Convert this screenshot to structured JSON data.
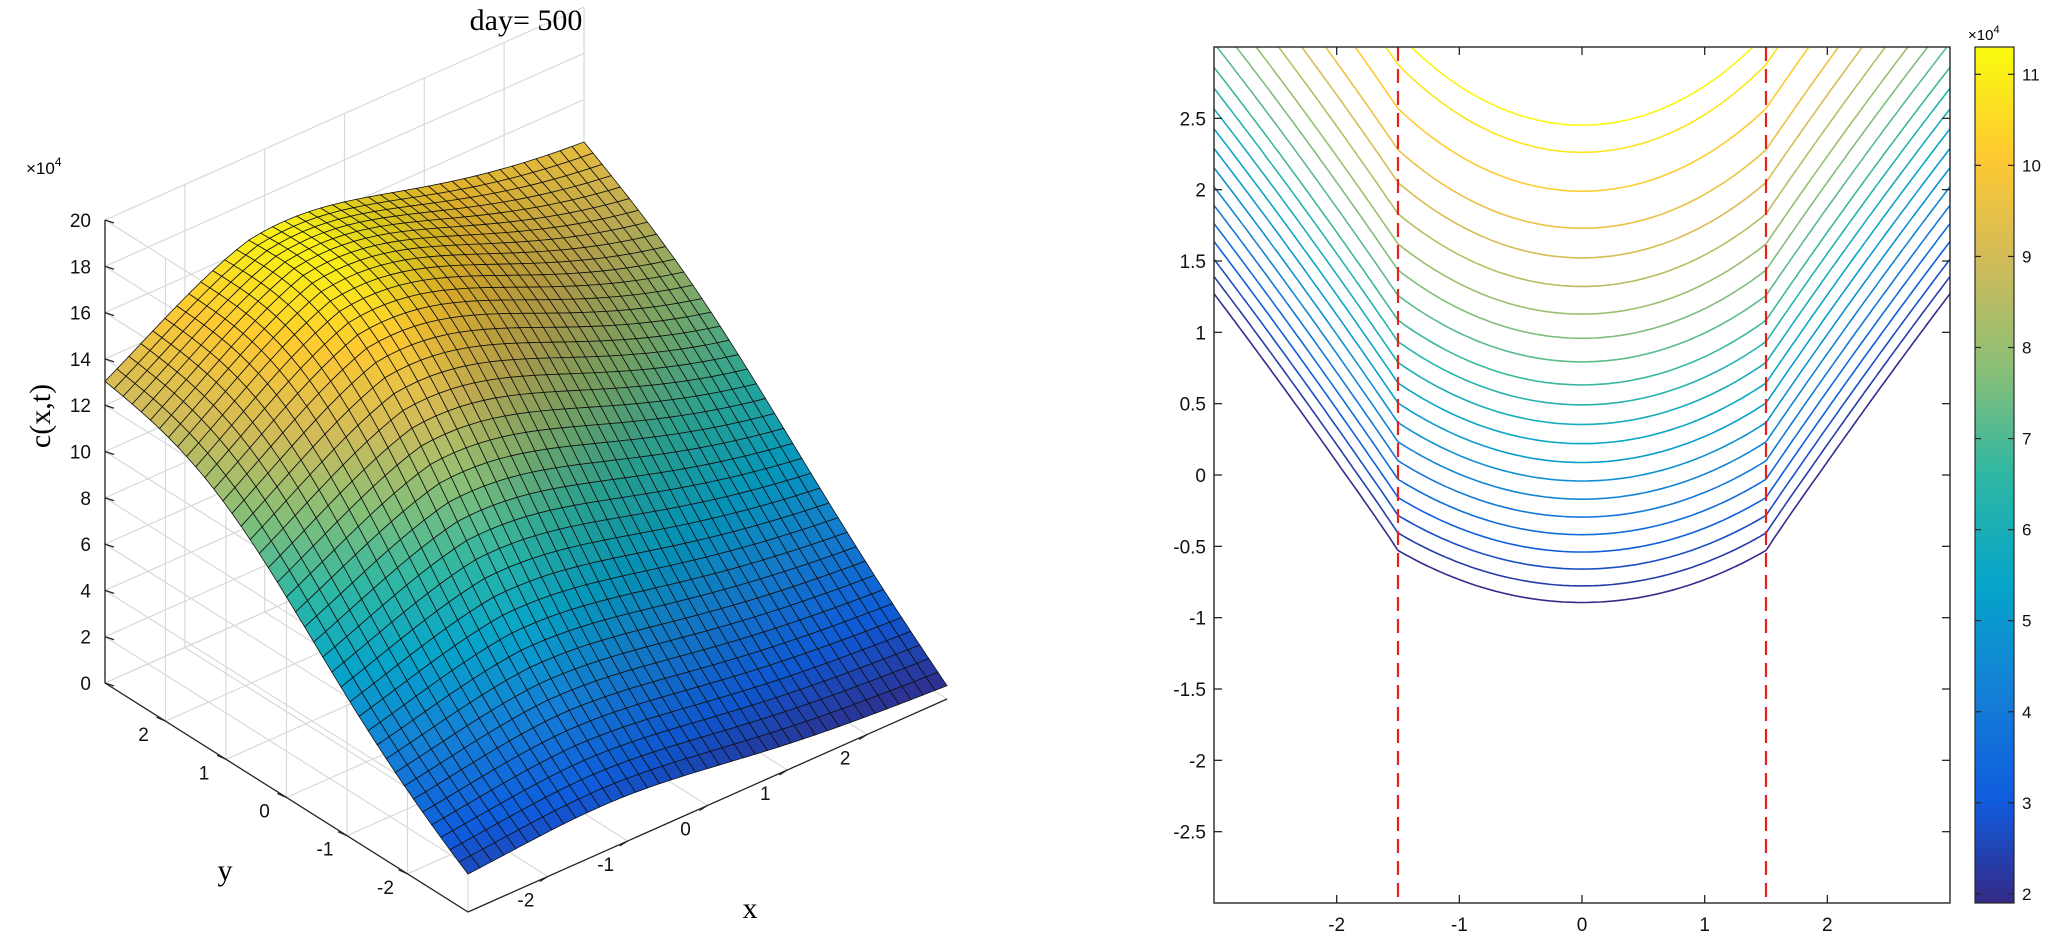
{
  "chart_data": [
    {
      "type": "surface",
      "title": "day= 500",
      "xlabel": "x",
      "ylabel": "y",
      "zlabel": "c(x,t)",
      "z_multiplier": "×10",
      "z_exponent": "4",
      "x_ticks": [
        "-2",
        "-1",
        "0",
        "1",
        "2"
      ],
      "y_ticks": [
        "-2",
        "-1",
        "0",
        "1",
        "2"
      ],
      "z_ticks": [
        "0",
        "2",
        "4",
        "6",
        "8",
        "10",
        "12",
        "14",
        "16",
        "18",
        "20"
      ],
      "xlim": [
        -3,
        3
      ],
      "ylim": [
        -3,
        3
      ],
      "zlim": [
        0,
        20
      ],
      "grid": true,
      "colormap": "parula",
      "corner_values": {
        "x_-3_y_3": 10.5,
        "x_3_y_3": 13.2,
        "x_-3_y_-3": 1.2,
        "x_3_y_-3": 0.5
      },
      "peak_value": 17
    },
    {
      "type": "contour",
      "xlim": [
        -3,
        3
      ],
      "ylim": [
        -3,
        3
      ],
      "x_ticks": [
        "-2",
        "-1",
        "0",
        "1",
        "2"
      ],
      "y_ticks": [
        "-2.5",
        "-2",
        "-1.5",
        "-1",
        "-0.5",
        "0",
        "0.5",
        "1",
        "1.5",
        "2",
        "2.5"
      ],
      "vertical_dashed_lines_x": [
        -1.5,
        1.5
      ],
      "dashed_line_color": "#e8201a",
      "contour_levels": [
        1.95,
        2.35,
        2.75,
        3.15,
        3.55,
        3.95,
        4.35,
        4.75,
        5.15,
        5.55,
        5.95,
        6.35,
        6.75,
        7.2,
        7.65,
        8.1,
        8.6,
        9.1,
        9.6,
        10.2,
        10.8,
        11.2
      ],
      "colorbar": {
        "multiplier": "×10",
        "exponent": "4",
        "ticks": [
          "2",
          "3",
          "4",
          "5",
          "6",
          "7",
          "8",
          "9",
          "10",
          "11"
        ],
        "range": [
          1.9,
          11.3
        ],
        "colormap": "parula"
      }
    }
  ]
}
